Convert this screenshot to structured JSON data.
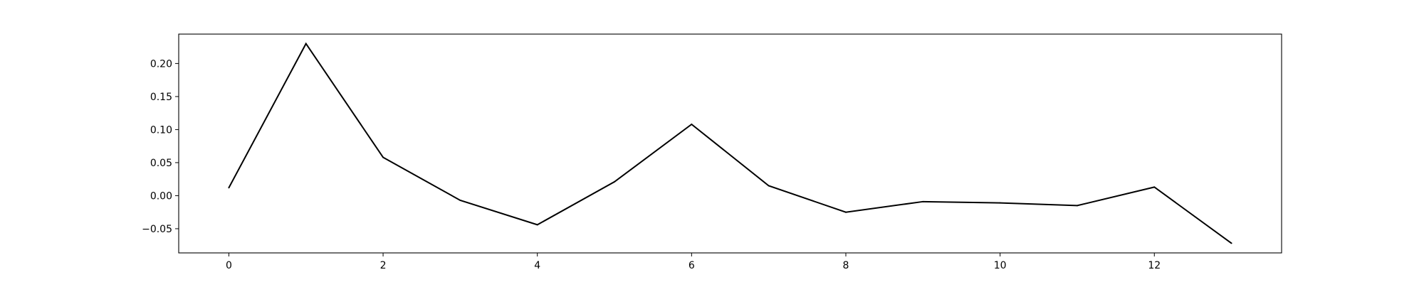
{
  "chart_data": {
    "type": "line",
    "title": "",
    "xlabel": "",
    "ylabel": "",
    "x": [
      0,
      1,
      2,
      3,
      4,
      5,
      6,
      7,
      8,
      9,
      10,
      11,
      12,
      13
    ],
    "series": [
      {
        "color": "#000000",
        "values": [
          0.012,
          0.23,
          0.058,
          -0.007,
          -0.044,
          0.021,
          0.108,
          0.015,
          -0.025,
          -0.009,
          -0.011,
          -0.015,
          0.013,
          -0.072
        ]
      }
    ],
    "xlim": [
      -0.65,
      13.65
    ],
    "ylim": [
      -0.0866,
      0.2445
    ],
    "xticks": [
      0,
      2,
      4,
      6,
      8,
      10,
      12
    ],
    "xtick_labels": [
      "0",
      "2",
      "4",
      "6",
      "8",
      "10",
      "12"
    ],
    "yticks": [
      -0.05,
      0.0,
      0.05,
      0.1,
      0.15,
      0.2
    ],
    "ytick_labels": [
      "−0.05",
      "0.00",
      "0.05",
      "0.10",
      "0.15",
      "0.20"
    ],
    "grid": false,
    "legend": "none"
  }
}
